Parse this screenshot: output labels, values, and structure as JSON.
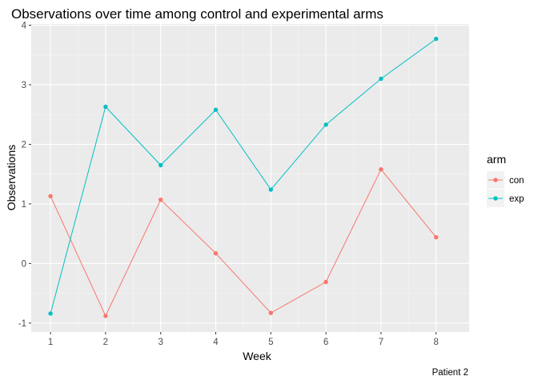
{
  "chart_data": {
    "type": "line",
    "title": "Observations over time among control and experimental arms",
    "xlabel": "Week",
    "ylabel": "Observations",
    "caption": "Patient 2",
    "x": [
      1,
      2,
      3,
      4,
      5,
      6,
      7,
      8
    ],
    "xlim": [
      0.65,
      8.6
    ],
    "ylim": [
      -1.15,
      4.02
    ],
    "yticks": [
      -1,
      0,
      1,
      2,
      3,
      4
    ],
    "grid": true,
    "legend": {
      "title": "arm",
      "position": "right"
    },
    "series": [
      {
        "name": "con",
        "color": "#F8766D",
        "values": [
          1.13,
          -0.88,
          1.07,
          0.17,
          -0.83,
          -0.31,
          1.58,
          0.44
        ]
      },
      {
        "name": "exp",
        "color": "#00BFC4",
        "values": [
          -0.84,
          2.63,
          1.65,
          2.58,
          1.24,
          2.33,
          3.1,
          3.77
        ]
      }
    ]
  }
}
